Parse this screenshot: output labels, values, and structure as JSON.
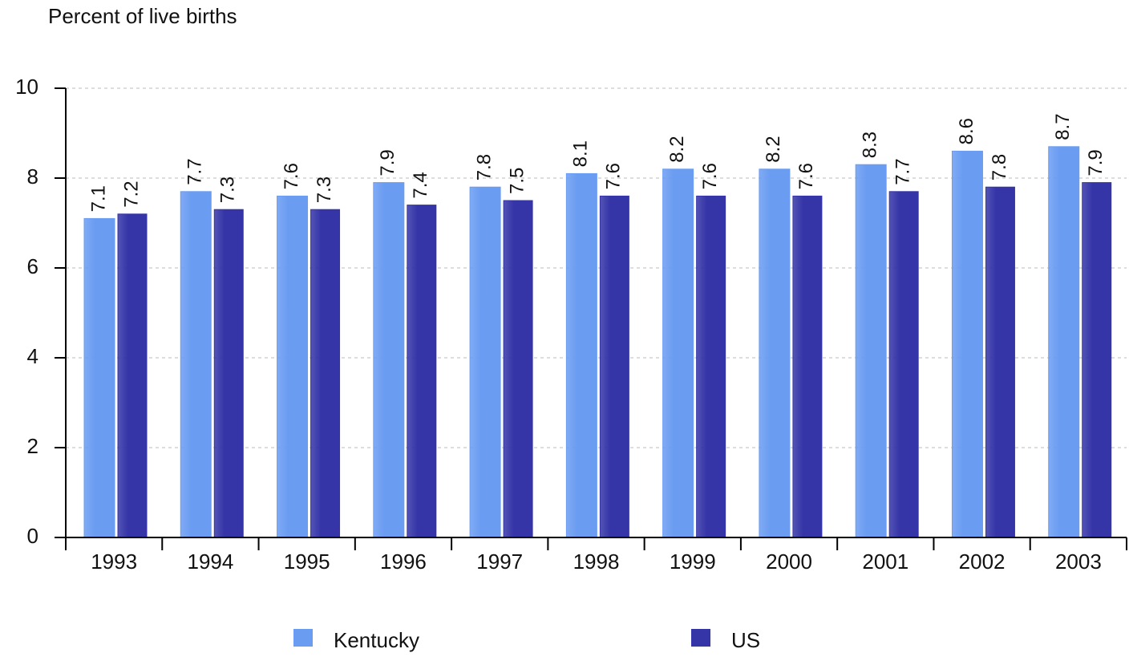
{
  "chart_data": {
    "type": "bar",
    "title": "Percent of live births",
    "categories": [
      "1993",
      "1994",
      "1995",
      "1996",
      "1997",
      "1998",
      "1999",
      "2000",
      "2001",
      "2002",
      "2003"
    ],
    "series": [
      {
        "name": "Kentucky",
        "color": "#6a9cf2",
        "values": [
          7.1,
          7.7,
          7.6,
          7.9,
          7.8,
          8.1,
          8.2,
          8.2,
          8.3,
          8.6,
          8.7
        ]
      },
      {
        "name": "US",
        "color": "#3535a8",
        "values": [
          7.2,
          7.3,
          7.3,
          7.4,
          7.5,
          7.6,
          7.6,
          7.6,
          7.7,
          7.8,
          7.9
        ]
      }
    ],
    "ylim": [
      0,
      10
    ],
    "yticks": [
      0,
      2,
      4,
      6,
      8,
      10
    ],
    "grid": true
  }
}
